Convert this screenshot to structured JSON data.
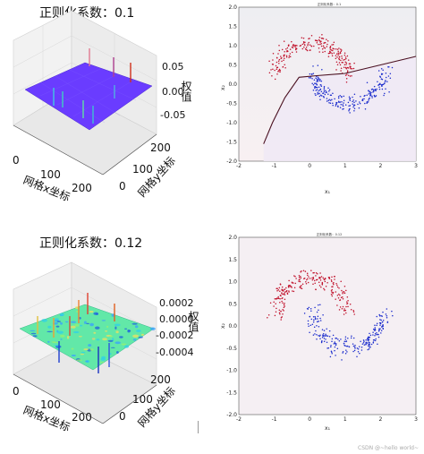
{
  "panels_3d": [
    {
      "title": "正则化系数：0.1",
      "z_ticks": [
        "0.05",
        "0.00",
        "-0.05"
      ],
      "z_label": "权值",
      "x_ticks": [
        "0",
        "100",
        "200"
      ],
      "x_label": "网格x坐标",
      "y_ticks": [
        "200",
        "100",
        "0"
      ],
      "y_label": "网格y坐标",
      "surface_color": "#6a3cff"
    },
    {
      "title": "正则化系数：0.12",
      "z_ticks": [
        "0.0002",
        "0.0000",
        "-0.0002",
        "-0.0004"
      ],
      "z_label": "权值",
      "x_ticks": [
        "0",
        "100",
        "200"
      ],
      "x_label": "网格x坐标",
      "y_ticks": [
        "200",
        "100",
        "0"
      ],
      "y_label": "网格y坐标",
      "surface_color": "#62e8a8"
    }
  ],
  "scatter_panels": [
    {
      "title": "正则化系数：0.1",
      "xlabel": "x₁",
      "ylabel": "x₂",
      "x_ticks": [
        "-2",
        "-1",
        "0",
        "1",
        "2",
        "3"
      ],
      "y_ticks": [
        "2.0",
        "1.5",
        "1.0",
        "0.5",
        "0.0",
        "-0.5",
        "-1.0",
        "-1.5",
        "-2.0"
      ],
      "has_boundary": true
    },
    {
      "title": "正则化系数：0.12",
      "xlabel": "x₁",
      "ylabel": "x₂",
      "x_ticks": [
        "-2",
        "-1",
        "0",
        "1",
        "2",
        "3"
      ],
      "y_ticks": [
        "2.0",
        "1.5",
        "1.0",
        "0.5",
        "0.0",
        "-0.5",
        "-1.0",
        "-1.5",
        "-2.0"
      ],
      "has_boundary": false
    }
  ],
  "chart_data": [
    {
      "type": "scatter",
      "title": "正则化系数：0.1",
      "xlabel": "x₁",
      "ylabel": "x₂",
      "xlim": [
        -2,
        3
      ],
      "ylim": [
        -2,
        2
      ],
      "series": [],
      "boundary": {
        "x": [
          -1.3,
          -1.05,
          -0.7,
          -0.3,
          0.2,
          1.0,
          2.0,
          3.0
        ],
        "y": [
          -1.55,
          -1.0,
          -0.35,
          0.18,
          0.22,
          0.28,
          0.5,
          0.72
        ]
      },
      "colors": {
        "class_0": "#c0102a",
        "class_1": "#1a2bcc",
        "boundary": "#4a1020"
      }
    },
    {
      "type": "scatter",
      "title": "正则化系数：0.12",
      "xlabel": "x₁",
      "ylabel": "x₂",
      "xlim": [
        -2,
        3
      ],
      "ylim": [
        -2,
        2
      ],
      "series": [],
      "colors": {
        "class_0": "#c0102a",
        "class_1": "#1a2bcc"
      }
    },
    {
      "type": "surface",
      "title": "正则化系数：0.1",
      "xlabel": "网格x坐标",
      "ylabel": "网格y坐标",
      "zlabel": "权值",
      "xlim": [
        0,
        250
      ],
      "ylim": [
        0,
        250
      ],
      "zlim": [
        -0.07,
        0.07
      ]
    },
    {
      "type": "surface",
      "title": "正则化系数：0.12",
      "xlabel": "网格x坐标",
      "ylabel": "网格y坐标",
      "zlabel": "权值",
      "xlim": [
        0,
        250
      ],
      "ylim": [
        0,
        250
      ],
      "zlim": [
        -0.0005,
        0.00025
      ]
    }
  ],
  "watermark": "CSDN @~hello world~"
}
